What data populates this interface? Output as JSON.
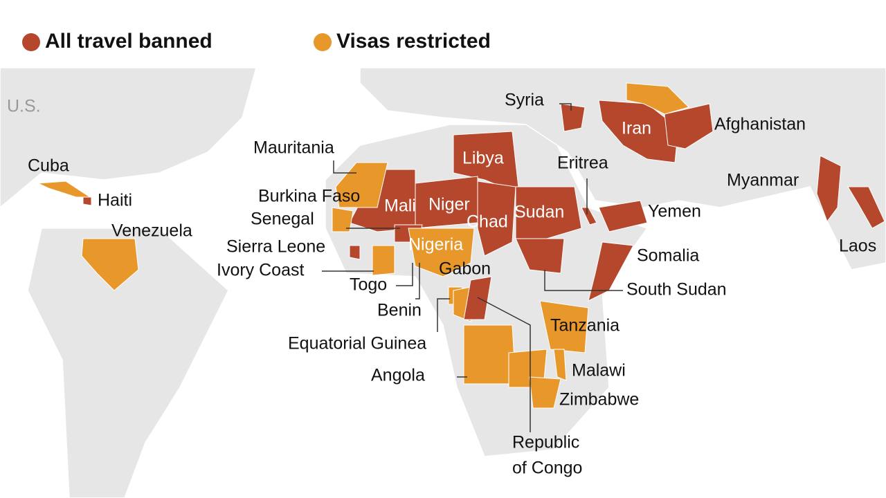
{
  "legend": [
    {
      "label": "All travel banned",
      "color": "#b5472c"
    },
    {
      "label": "Visas restricted",
      "color": "#e8982b"
    }
  ],
  "labels": [
    "U.S.",
    "Cuba",
    "Haiti",
    "Venezuela",
    "Mauritania",
    "Burkina Faso",
    "Senegal",
    "Sierra Leone",
    "Ivory Coast",
    "Togo",
    "Benin",
    "Equatorial Guinea",
    "Angola",
    "Mali",
    "Niger",
    "Nigeria",
    "Gabon",
    "Libya",
    "Chad",
    "Sudan",
    "Syria",
    "Iran",
    "Afghanistan",
    "Eritrea",
    "Yemen",
    "Somalia",
    "South Sudan",
    "Tanzania",
    "Malawi",
    "Zimbabwe",
    "Republic",
    "of Congo",
    "Myanmar",
    "Laos"
  ]
}
